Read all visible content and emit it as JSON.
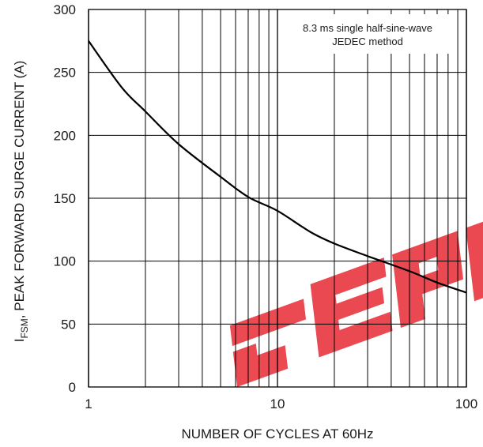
{
  "chart_data": {
    "type": "line",
    "xscale": "log",
    "xlim": [
      1,
      100
    ],
    "ylim": [
      0,
      300
    ],
    "xticks": [
      1,
      10,
      100
    ],
    "xtick_labels": [
      "1",
      "10",
      "100"
    ],
    "yticks": [
      0,
      50,
      100,
      150,
      200,
      250,
      300
    ],
    "ytick_labels": [
      "0",
      "50",
      "100",
      "150",
      "200",
      "250",
      "300"
    ],
    "xlabel": "NUMBER OF CYCLES AT 60Hz",
    "ylabel_main": "I",
    "ylabel_sub": "FSM",
    "ylabel_rest": ", PEAK FORWARD SURGE CURRENT (A)",
    "grid": true,
    "annotation": [
      "8.3 ms single half-sine-wave",
      "JEDEC method"
    ],
    "series": [
      {
        "x": [
          1,
          1.5,
          2,
          3,
          5,
          7,
          10,
          15,
          20,
          30,
          50,
          70,
          100
        ],
        "y": [
          275,
          238,
          219,
          193,
          167,
          151,
          140,
          123,
          114,
          104,
          92,
          83,
          75
        ]
      }
    ],
    "watermark": "GEPM",
    "colors": {
      "line": "#000000",
      "grid": "#000000",
      "watermark": "#e8313a"
    }
  }
}
